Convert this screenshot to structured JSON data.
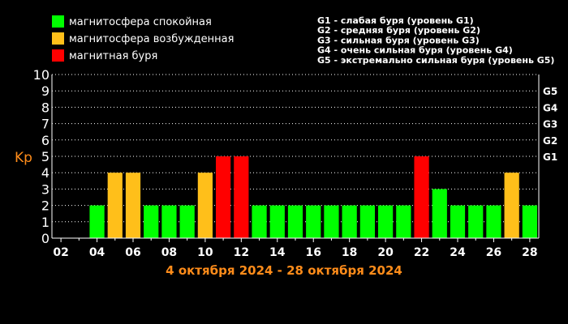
{
  "chart_data": {
    "type": "bar",
    "ylabel": "Kp",
    "title": "4 октября 2024 - 28 октября 2024",
    "ylim": [
      0,
      10
    ],
    "yticks": [
      "0",
      "1",
      "2",
      "3",
      "4",
      "5",
      "6",
      "7",
      "8",
      "9",
      "10"
    ],
    "xlim": [
      1.5,
      28.5
    ],
    "xticks": [
      "02",
      "04",
      "06",
      "08",
      "10",
      "12",
      "14",
      "16",
      "18",
      "20",
      "22",
      "24",
      "26",
      "28"
    ],
    "grid": "horizontal dotted",
    "storm_levels": [
      {
        "label": "G1",
        "value": 5
      },
      {
        "label": "G2",
        "value": 6
      },
      {
        "label": "G3",
        "value": 7
      },
      {
        "label": "G4",
        "value": 8
      },
      {
        "label": "G5",
        "value": 9
      }
    ],
    "bars": [
      {
        "day": 4,
        "value": 2,
        "state": "calm"
      },
      {
        "day": 5,
        "value": 4,
        "state": "excited"
      },
      {
        "day": 6,
        "value": 4,
        "state": "excited"
      },
      {
        "day": 7,
        "value": 2,
        "state": "calm"
      },
      {
        "day": 8,
        "value": 2,
        "state": "calm"
      },
      {
        "day": 9,
        "value": 2,
        "state": "calm"
      },
      {
        "day": 10,
        "value": 4,
        "state": "excited"
      },
      {
        "day": 11,
        "value": 5,
        "state": "storm"
      },
      {
        "day": 12,
        "value": 5,
        "state": "storm"
      },
      {
        "day": 13,
        "value": 2,
        "state": "calm"
      },
      {
        "day": 14,
        "value": 2,
        "state": "calm"
      },
      {
        "day": 15,
        "value": 2,
        "state": "calm"
      },
      {
        "day": 16,
        "value": 2,
        "state": "calm"
      },
      {
        "day": 17,
        "value": 2,
        "state": "calm"
      },
      {
        "day": 18,
        "value": 2,
        "state": "calm"
      },
      {
        "day": 19,
        "value": 2,
        "state": "calm"
      },
      {
        "day": 20,
        "value": 2,
        "state": "calm"
      },
      {
        "day": 21,
        "value": 2,
        "state": "calm"
      },
      {
        "day": 22,
        "value": 5,
        "state": "storm"
      },
      {
        "day": 23,
        "value": 3,
        "state": "calm"
      },
      {
        "day": 24,
        "value": 2,
        "state": "calm"
      },
      {
        "day": 25,
        "value": 2,
        "state": "calm"
      },
      {
        "day": 26,
        "value": 2,
        "state": "calm"
      },
      {
        "day": 27,
        "value": 4,
        "state": "excited"
      },
      {
        "day": 28,
        "value": 2,
        "state": "calm"
      }
    ],
    "legend": [
      {
        "key": "calm",
        "label": "магнитосфера спокойная",
        "color": "#00ff00"
      },
      {
        "key": "excited",
        "label": "магнитосфера возбужденная",
        "color": "#ffbf1a"
      },
      {
        "key": "storm",
        "label": "магнитная буря",
        "color": "#ff0000"
      }
    ],
    "storm_legend": [
      "G1 - слабая буря (уровень G1)",
      "G2 - средняя буря (уровень G2)",
      "G3 - сильная буря (уровень G3)",
      "G4 - очень сильная буря (уровень G4)",
      "G5 - экстремально сильная буря (уровень G5)"
    ]
  }
}
